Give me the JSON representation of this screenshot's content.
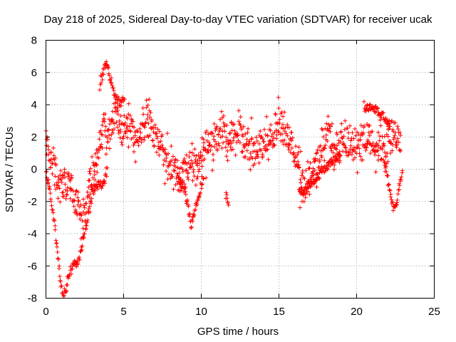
{
  "chart_data": {
    "type": "scatter",
    "title": "Day 218 of 2025, Sidereal Day-to-day VTEC variation (SDTVAR) for receiver ucak",
    "xlabel": "GPS time / hours",
    "ylabel": "SDTVAR / TECUs",
    "xlim": [
      0,
      25
    ],
    "ylim": [
      -8,
      8
    ],
    "xticks": [
      0,
      5,
      10,
      15,
      20,
      25
    ],
    "yticks": [
      -8,
      -6,
      -4,
      -2,
      0,
      2,
      4,
      6,
      8
    ],
    "xtick_labels": [
      "0",
      "5",
      "10",
      "15",
      "20",
      "25"
    ],
    "ytick_labels": [
      "-8",
      "-6",
      "-4",
      "-2",
      "0",
      "2",
      "4",
      "6",
      "8"
    ],
    "grid": true,
    "marker": "+",
    "marker_color": "#ff0000",
    "series": [
      {
        "name": "SDTVAR",
        "color": "#ff0000",
        "trend": [
          [
            0.0,
            2.1
          ],
          [
            0.1,
            1.4
          ],
          [
            0.2,
            0.9
          ],
          [
            0.35,
            0.5
          ],
          [
            0.5,
            0.1
          ],
          [
            0.7,
            -0.4
          ],
          [
            0.9,
            -0.9
          ],
          [
            1.1,
            -1.0
          ],
          [
            1.4,
            -1.0
          ],
          [
            1.7,
            -1.2
          ],
          [
            2.0,
            -2.0
          ],
          [
            2.3,
            -3.0
          ],
          [
            2.6,
            -2.8
          ],
          [
            2.8,
            -1.0
          ],
          [
            3.0,
            -0.5
          ],
          [
            3.2,
            0.5
          ],
          [
            3.5,
            1.5
          ],
          [
            3.8,
            3.0
          ],
          [
            4.0,
            1.5
          ],
          [
            4.2,
            2.5
          ],
          [
            4.5,
            3.5
          ],
          [
            4.8,
            2.2
          ],
          [
            5.0,
            2.0
          ],
          [
            5.3,
            3.0
          ],
          [
            5.6,
            2.2
          ],
          [
            5.9,
            1.5
          ],
          [
            6.2,
            2.5
          ],
          [
            6.6,
            3.2
          ],
          [
            7.0,
            2.0
          ],
          [
            7.4,
            1.5
          ],
          [
            7.8,
            0.5
          ],
          [
            8.2,
            0.0
          ],
          [
            8.6,
            -0.5
          ],
          [
            9.0,
            -0.2
          ],
          [
            9.4,
            0.5
          ],
          [
            9.8,
            0.0
          ],
          [
            10.2,
            1.0
          ],
          [
            10.6,
            1.5
          ],
          [
            11.0,
            1.8
          ],
          [
            11.4,
            2.5
          ],
          [
            11.8,
            1.5
          ],
          [
            12.2,
            2.0
          ],
          [
            12.6,
            2.5
          ],
          [
            13.0,
            1.5
          ],
          [
            13.4,
            0.8
          ],
          [
            13.8,
            1.2
          ],
          [
            14.2,
            2.0
          ],
          [
            14.6,
            1.5
          ],
          [
            15.0,
            3.0
          ],
          [
            15.4,
            2.5
          ],
          [
            15.8,
            1.5
          ],
          [
            16.2,
            0.5
          ],
          [
            16.6,
            -1.0
          ],
          [
            17.0,
            -0.5
          ],
          [
            17.4,
            0.0
          ],
          [
            17.8,
            1.0
          ],
          [
            18.2,
            2.5
          ],
          [
            18.6,
            1.0
          ],
          [
            19.0,
            1.5
          ],
          [
            19.4,
            1.8
          ],
          [
            19.8,
            1.2
          ],
          [
            20.4,
            1.5
          ],
          [
            20.8,
            2.2
          ],
          [
            21.2,
            1.0
          ],
          [
            21.6,
            1.5
          ],
          [
            22.0,
            1.0
          ],
          [
            22.3,
            2.5
          ],
          [
            22.6,
            2.0
          ],
          [
            22.9,
            1.5
          ]
        ],
        "branches": [
          [
            [
              0.0,
              -0.3
            ],
            [
              0.3,
              -1.5
            ],
            [
              0.6,
              -3.5
            ],
            [
              0.8,
              -5.5
            ],
            [
              1.0,
              -7.2
            ],
            [
              1.1,
              -7.9
            ],
            [
              1.3,
              -7.5
            ],
            [
              1.5,
              -6.5
            ],
            [
              1.8,
              -5.8
            ],
            [
              2.1,
              -5.9
            ],
            [
              2.4,
              -4.5
            ],
            [
              2.7,
              -3.0
            ],
            [
              3.0,
              -1.5
            ],
            [
              3.3,
              -1.0
            ],
            [
              3.6,
              -1.0
            ],
            [
              3.9,
              -0.5
            ],
            [
              4.0,
              0.0
            ]
          ],
          [
            [
              3.5,
              5.0
            ],
            [
              3.7,
              6.0
            ],
            [
              3.85,
              6.5
            ],
            [
              4.0,
              6.3
            ],
            [
              4.2,
              5.5
            ],
            [
              4.5,
              4.5
            ],
            [
              4.8,
              4.0
            ],
            [
              5.1,
              4.5
            ]
          ],
          [
            [
              8.5,
              -0.5
            ],
            [
              9.0,
              -1.5
            ],
            [
              9.2,
              -2.5
            ],
            [
              9.4,
              -3.5
            ],
            [
              9.6,
              -2.5
            ],
            [
              9.9,
              -1.5
            ],
            [
              10.2,
              -0.5
            ]
          ],
          [
            [
              11.6,
              -1.6
            ],
            [
              11.8,
              -2.2
            ]
          ],
          [
            [
              16.3,
              -1.2
            ],
            [
              16.6,
              -1.5
            ],
            [
              17.0,
              -1.0
            ],
            [
              17.5,
              -0.5
            ],
            [
              18.0,
              0.0
            ],
            [
              18.5,
              0.5
            ],
            [
              19.0,
              1.0
            ]
          ],
          [
            [
              20.5,
              3.8
            ],
            [
              21.0,
              3.8
            ],
            [
              21.5,
              3.5
            ],
            [
              22.0,
              3.0
            ],
            [
              22.2,
              2.5
            ]
          ],
          [
            [
              21.8,
              0.5
            ],
            [
              22.0,
              -0.5
            ],
            [
              22.2,
              -1.5
            ],
            [
              22.4,
              -2.5
            ],
            [
              22.6,
              -2.0
            ],
            [
              22.8,
              -1.0
            ],
            [
              23.0,
              0.0
            ]
          ]
        ]
      }
    ]
  }
}
